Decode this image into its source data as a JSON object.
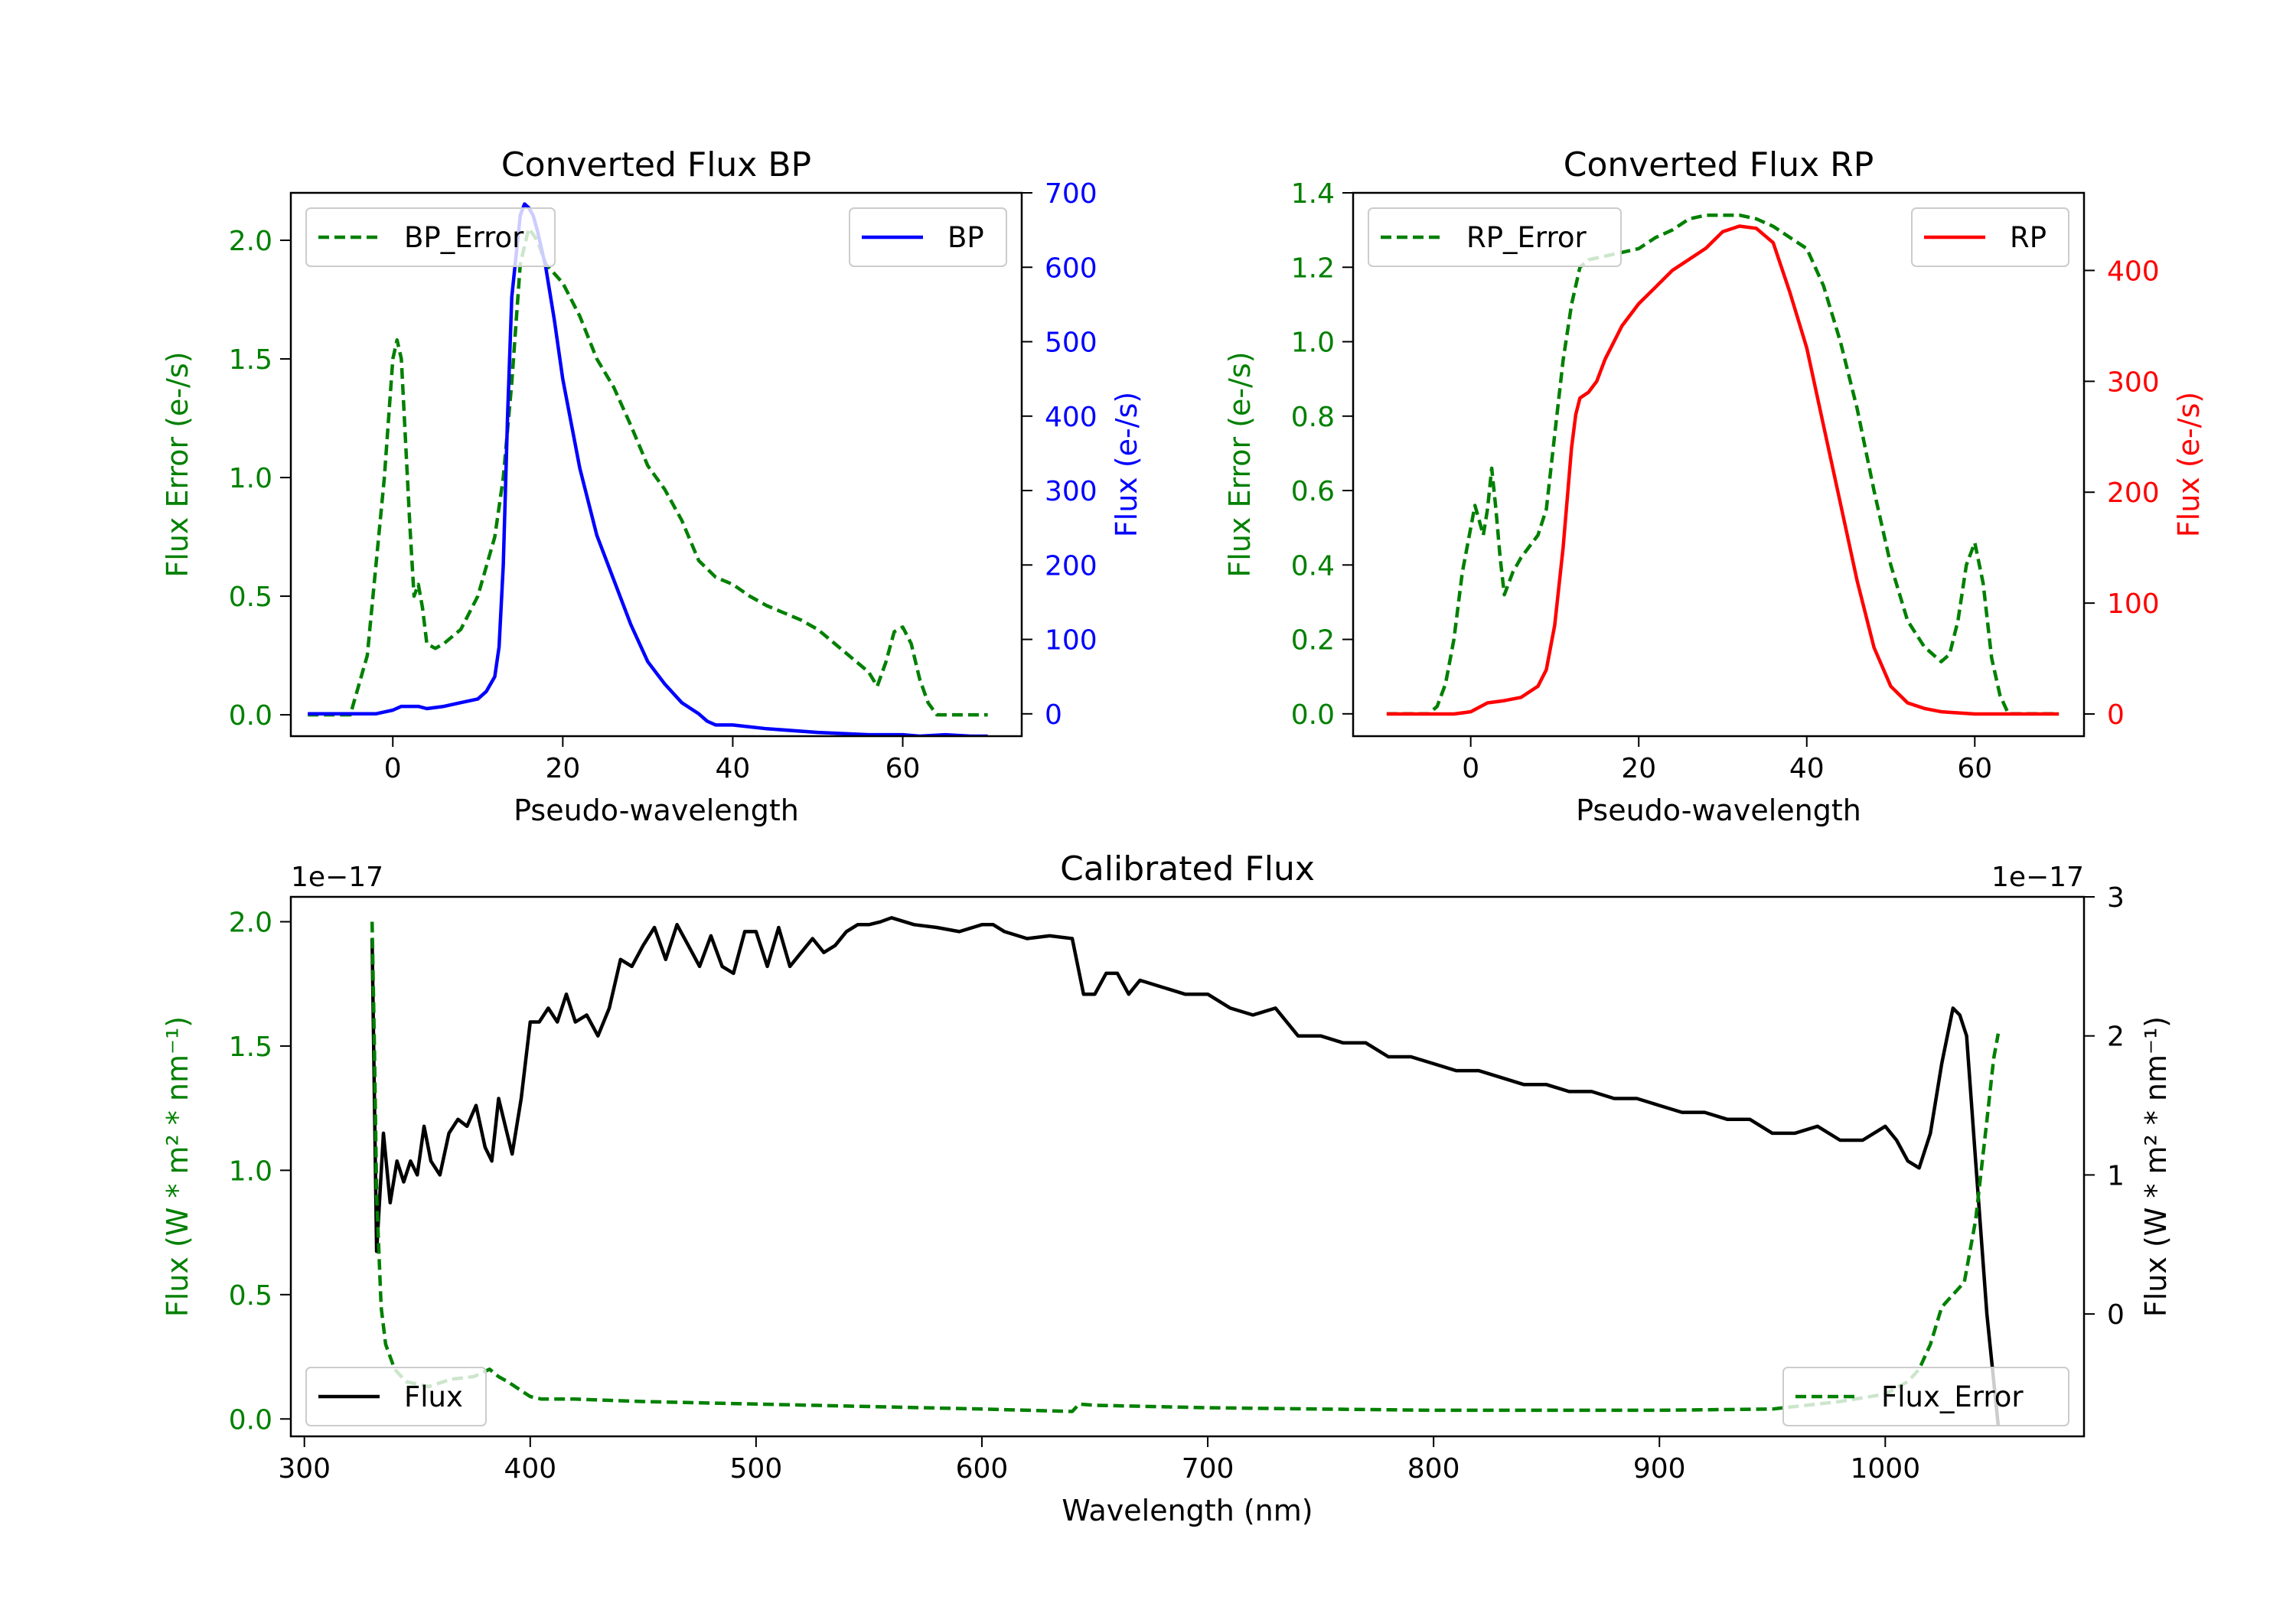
{
  "chart_data": [
    {
      "id": "bp",
      "type": "line",
      "title": "Converted Flux BP",
      "xlabel": "Pseudo-wavelength",
      "xlim": [
        -12,
        74
      ],
      "xticks": [
        0,
        20,
        40,
        60
      ],
      "left_axis": {
        "label": "Flux Error (e-/s)",
        "color": "#008000",
        "ylim": [
          -0.09,
          2.2
        ],
        "ticks": [
          0.0,
          0.5,
          1.0,
          1.5,
          2.0
        ],
        "tick_labels": [
          "0.0",
          "0.5",
          "1.0",
          "1.5",
          "2.0"
        ]
      },
      "right_axis": {
        "label": "Flux (e-/s)",
        "color": "#0000ff",
        "ylim": [
          -30,
          700
        ],
        "ticks": [
          0,
          100,
          200,
          300,
          400,
          500,
          600,
          700
        ],
        "tick_labels": [
          "0",
          "100",
          "200",
          "300",
          "400",
          "500",
          "600",
          "700"
        ]
      },
      "series": [
        {
          "name": "BP_Error",
          "axis": "left",
          "color": "#008000",
          "style": "dashed",
          "x": [
            -10,
            -5,
            -3,
            -1,
            0,
            0.5,
            1,
            2,
            2.5,
            3,
            3.5,
            4,
            5,
            6,
            8,
            10,
            12,
            13,
            14,
            15,
            16,
            17,
            18,
            20,
            22,
            24,
            26,
            28,
            30,
            32,
            34,
            36,
            38,
            40,
            42,
            44,
            46,
            48,
            50,
            52,
            54,
            56,
            57,
            58,
            59,
            60,
            61,
            62,
            63,
            64,
            66,
            70
          ],
          "values": [
            0.0,
            0.0,
            0.25,
            1.0,
            1.5,
            1.58,
            1.5,
            0.8,
            0.5,
            0.55,
            0.45,
            0.3,
            0.28,
            0.3,
            0.36,
            0.5,
            0.75,
            1.0,
            1.4,
            1.9,
            2.05,
            2.0,
            1.9,
            1.82,
            1.68,
            1.5,
            1.38,
            1.22,
            1.05,
            0.95,
            0.82,
            0.65,
            0.58,
            0.55,
            0.5,
            0.46,
            0.43,
            0.4,
            0.36,
            0.3,
            0.24,
            0.18,
            0.12,
            0.22,
            0.35,
            0.37,
            0.3,
            0.15,
            0.05,
            0.0,
            0.0,
            0.0
          ]
        },
        {
          "name": "BP",
          "axis": "right",
          "color": "#0000ff",
          "style": "solid",
          "x": [
            -10,
            -5,
            -2,
            0,
            1,
            2,
            3,
            4,
            6,
            8,
            10,
            11,
            12,
            12.5,
            13,
            13.5,
            14,
            15,
            15.5,
            16,
            16.5,
            17,
            18,
            19,
            20,
            22,
            24,
            26,
            28,
            30,
            32,
            34,
            36,
            37,
            38,
            40,
            44,
            50,
            56,
            60,
            62,
            65,
            68,
            70
          ],
          "values": [
            0,
            0,
            0,
            5,
            10,
            10,
            10,
            7,
            10,
            15,
            20,
            30,
            50,
            90,
            200,
            400,
            560,
            670,
            685,
            680,
            670,
            650,
            600,
            530,
            450,
            330,
            240,
            180,
            120,
            70,
            40,
            15,
            0,
            -10,
            -15,
            -15,
            -20,
            -25,
            -28,
            -28,
            -30,
            -28,
            -30,
            -30
          ]
        }
      ]
    },
    {
      "id": "rp",
      "type": "line",
      "title": "Converted Flux RP",
      "xlabel": "Pseudo-wavelength",
      "xlim": [
        -14,
        73
      ],
      "xticks": [
        0,
        20,
        40,
        60
      ],
      "left_axis": {
        "label": "Flux Error (e-/s)",
        "color": "#008000",
        "ylim": [
          -0.06,
          1.4
        ],
        "ticks": [
          0.0,
          0.2,
          0.4,
          0.6,
          0.8,
          1.0,
          1.2,
          1.4
        ],
        "tick_labels": [
          "0.0",
          "0.2",
          "0.4",
          "0.6",
          "0.8",
          "1.0",
          "1.2",
          "1.4"
        ]
      },
      "right_axis": {
        "label": "Flux (e-/s)",
        "color": "#ff0000",
        "ylim": [
          -20,
          470
        ],
        "ticks": [
          0,
          100,
          200,
          300,
          400
        ],
        "tick_labels": [
          "0",
          "100",
          "200",
          "300",
          "400"
        ]
      },
      "series": [
        {
          "name": "RP_Error",
          "axis": "left",
          "color": "#008000",
          "style": "dashed",
          "x": [
            -10,
            -5,
            -4,
            -3,
            -2,
            -1,
            0,
            0.5,
            1,
            1.5,
            2,
            2.5,
            3,
            3.5,
            4,
            5,
            6,
            7,
            8,
            9,
            10,
            11,
            12,
            13,
            14,
            16,
            18,
            20,
            22,
            24,
            26,
            28,
            30,
            32,
            34,
            36,
            38,
            40,
            42,
            44,
            46,
            48,
            50,
            52,
            54,
            55,
            56,
            57,
            58,
            59,
            60,
            61,
            62,
            63,
            64,
            66,
            70
          ],
          "values": [
            0.0,
            0.0,
            0.02,
            0.08,
            0.2,
            0.38,
            0.5,
            0.56,
            0.52,
            0.48,
            0.55,
            0.66,
            0.55,
            0.42,
            0.32,
            0.38,
            0.42,
            0.45,
            0.48,
            0.55,
            0.75,
            0.95,
            1.1,
            1.2,
            1.22,
            1.23,
            1.24,
            1.25,
            1.28,
            1.3,
            1.33,
            1.34,
            1.34,
            1.34,
            1.33,
            1.31,
            1.28,
            1.25,
            1.15,
            1.0,
            0.82,
            0.6,
            0.4,
            0.25,
            0.18,
            0.16,
            0.14,
            0.16,
            0.25,
            0.4,
            0.46,
            0.35,
            0.15,
            0.05,
            0.0,
            0.0,
            0.0
          ]
        },
        {
          "name": "RP",
          "axis": "right",
          "color": "#ff0000",
          "style": "solid",
          "x": [
            -10,
            -5,
            -2,
            0,
            2,
            4,
            6,
            8,
            9,
            10,
            11,
            12,
            12.5,
            13,
            14,
            15,
            16,
            18,
            20,
            22,
            24,
            26,
            28,
            30,
            32,
            34,
            36,
            38,
            40,
            42,
            44,
            46,
            48,
            50,
            52,
            54,
            56,
            60,
            64,
            70
          ],
          "values": [
            0,
            0,
            0,
            2,
            10,
            12,
            15,
            25,
            40,
            80,
            150,
            240,
            270,
            285,
            290,
            300,
            320,
            350,
            370,
            385,
            400,
            410,
            420,
            435,
            440,
            438,
            425,
            380,
            330,
            260,
            190,
            120,
            60,
            25,
            10,
            5,
            2,
            0,
            0,
            0
          ]
        }
      ]
    },
    {
      "id": "calibrated",
      "type": "line",
      "title": "Calibrated Flux",
      "xlabel": "Wavelength (nm)",
      "xlim": [
        294,
        1088
      ],
      "xticks": [
        300,
        400,
        500,
        600,
        700,
        800,
        900,
        1000
      ],
      "left_axis": {
        "label": "Flux (W * m² * nm⁻¹)",
        "color": "#008000",
        "offset_text": "1e−17",
        "ylim": [
          -0.07,
          2.1
        ],
        "ticks": [
          0.0,
          0.5,
          1.0,
          1.5,
          2.0
        ],
        "tick_labels": [
          "0.0",
          "0.5",
          "1.0",
          "1.5",
          "2.0"
        ]
      },
      "right_axis": {
        "label": "Flux (W * m² * nm⁻¹)",
        "color": "#000000",
        "offset_text": "1e−17",
        "ylim": [
          -0.88,
          3.0
        ],
        "ticks": [
          0,
          1,
          2,
          3
        ],
        "tick_labels": [
          "0",
          "1",
          "2",
          "3"
        ]
      },
      "series": [
        {
          "name": "Flux",
          "axis": "right",
          "color": "#000000",
          "style": "solid",
          "x": [
            330,
            332,
            335,
            338,
            341,
            344,
            347,
            350,
            353,
            356,
            360,
            364,
            368,
            372,
            376,
            380,
            383,
            386,
            389,
            392,
            396,
            400,
            404,
            408,
            412,
            416,
            420,
            425,
            430,
            435,
            440,
            445,
            450,
            455,
            460,
            465,
            470,
            475,
            480,
            485,
            490,
            495,
            500,
            505,
            510,
            515,
            520,
            525,
            530,
            535,
            540,
            545,
            550,
            555,
            560,
            570,
            580,
            590,
            600,
            605,
            610,
            620,
            630,
            640,
            645,
            650,
            655,
            660,
            665,
            670,
            680,
            690,
            700,
            710,
            720,
            730,
            740,
            750,
            760,
            770,
            780,
            790,
            800,
            810,
            820,
            830,
            840,
            850,
            860,
            870,
            880,
            890,
            900,
            910,
            920,
            930,
            940,
            950,
            960,
            970,
            980,
            990,
            1000,
            1005,
            1010,
            1015,
            1020,
            1025,
            1030,
            1033,
            1036,
            1040,
            1045,
            1050
          ],
          "values": [
            2.7,
            0.45,
            1.3,
            0.8,
            1.1,
            0.95,
            1.1,
            1.0,
            1.35,
            1.1,
            1.0,
            1.3,
            1.4,
            1.35,
            1.5,
            1.2,
            1.1,
            1.55,
            1.35,
            1.15,
            1.55,
            2.1,
            2.1,
            2.2,
            2.1,
            2.3,
            2.1,
            2.15,
            2.0,
            2.2,
            2.55,
            2.5,
            2.65,
            2.78,
            2.55,
            2.8,
            2.65,
            2.5,
            2.72,
            2.5,
            2.45,
            2.75,
            2.75,
            2.5,
            2.78,
            2.5,
            2.6,
            2.7,
            2.6,
            2.65,
            2.75,
            2.8,
            2.8,
            2.82,
            2.85,
            2.8,
            2.78,
            2.75,
            2.8,
            2.8,
            2.75,
            2.7,
            2.72,
            2.7,
            2.3,
            2.3,
            2.45,
            2.45,
            2.3,
            2.4,
            2.35,
            2.3,
            2.3,
            2.2,
            2.15,
            2.2,
            2.0,
            2.0,
            1.95,
            1.95,
            1.85,
            1.85,
            1.8,
            1.75,
            1.75,
            1.7,
            1.65,
            1.65,
            1.6,
            1.6,
            1.55,
            1.55,
            1.5,
            1.45,
            1.45,
            1.4,
            1.4,
            1.3,
            1.3,
            1.35,
            1.25,
            1.25,
            1.35,
            1.25,
            1.1,
            1.05,
            1.3,
            1.8,
            2.2,
            2.15,
            2.0,
            1.1,
            0.0,
            -0.8
          ]
        },
        {
          "name": "Flux_Error",
          "axis": "left",
          "color": "#008000",
          "style": "dashed",
          "x": [
            330,
            331,
            332,
            334,
            336,
            340,
            345,
            355,
            365,
            375,
            382,
            386,
            390,
            395,
            400,
            405,
            420,
            450,
            500,
            550,
            600,
            640,
            643,
            650,
            700,
            750,
            800,
            850,
            900,
            950,
            980,
            1000,
            1010,
            1015,
            1020,
            1025,
            1030,
            1035,
            1040,
            1045,
            1048,
            1050
          ],
          "values": [
            2.0,
            1.5,
            0.9,
            0.45,
            0.3,
            0.2,
            0.15,
            0.13,
            0.16,
            0.17,
            0.2,
            0.17,
            0.15,
            0.12,
            0.09,
            0.08,
            0.08,
            0.07,
            0.06,
            0.05,
            0.04,
            0.03,
            0.06,
            0.055,
            0.045,
            0.04,
            0.035,
            0.035,
            0.035,
            0.04,
            0.07,
            0.1,
            0.15,
            0.2,
            0.3,
            0.45,
            0.5,
            0.55,
            0.8,
            1.2,
            1.45,
            1.55
          ]
        }
      ]
    }
  ]
}
